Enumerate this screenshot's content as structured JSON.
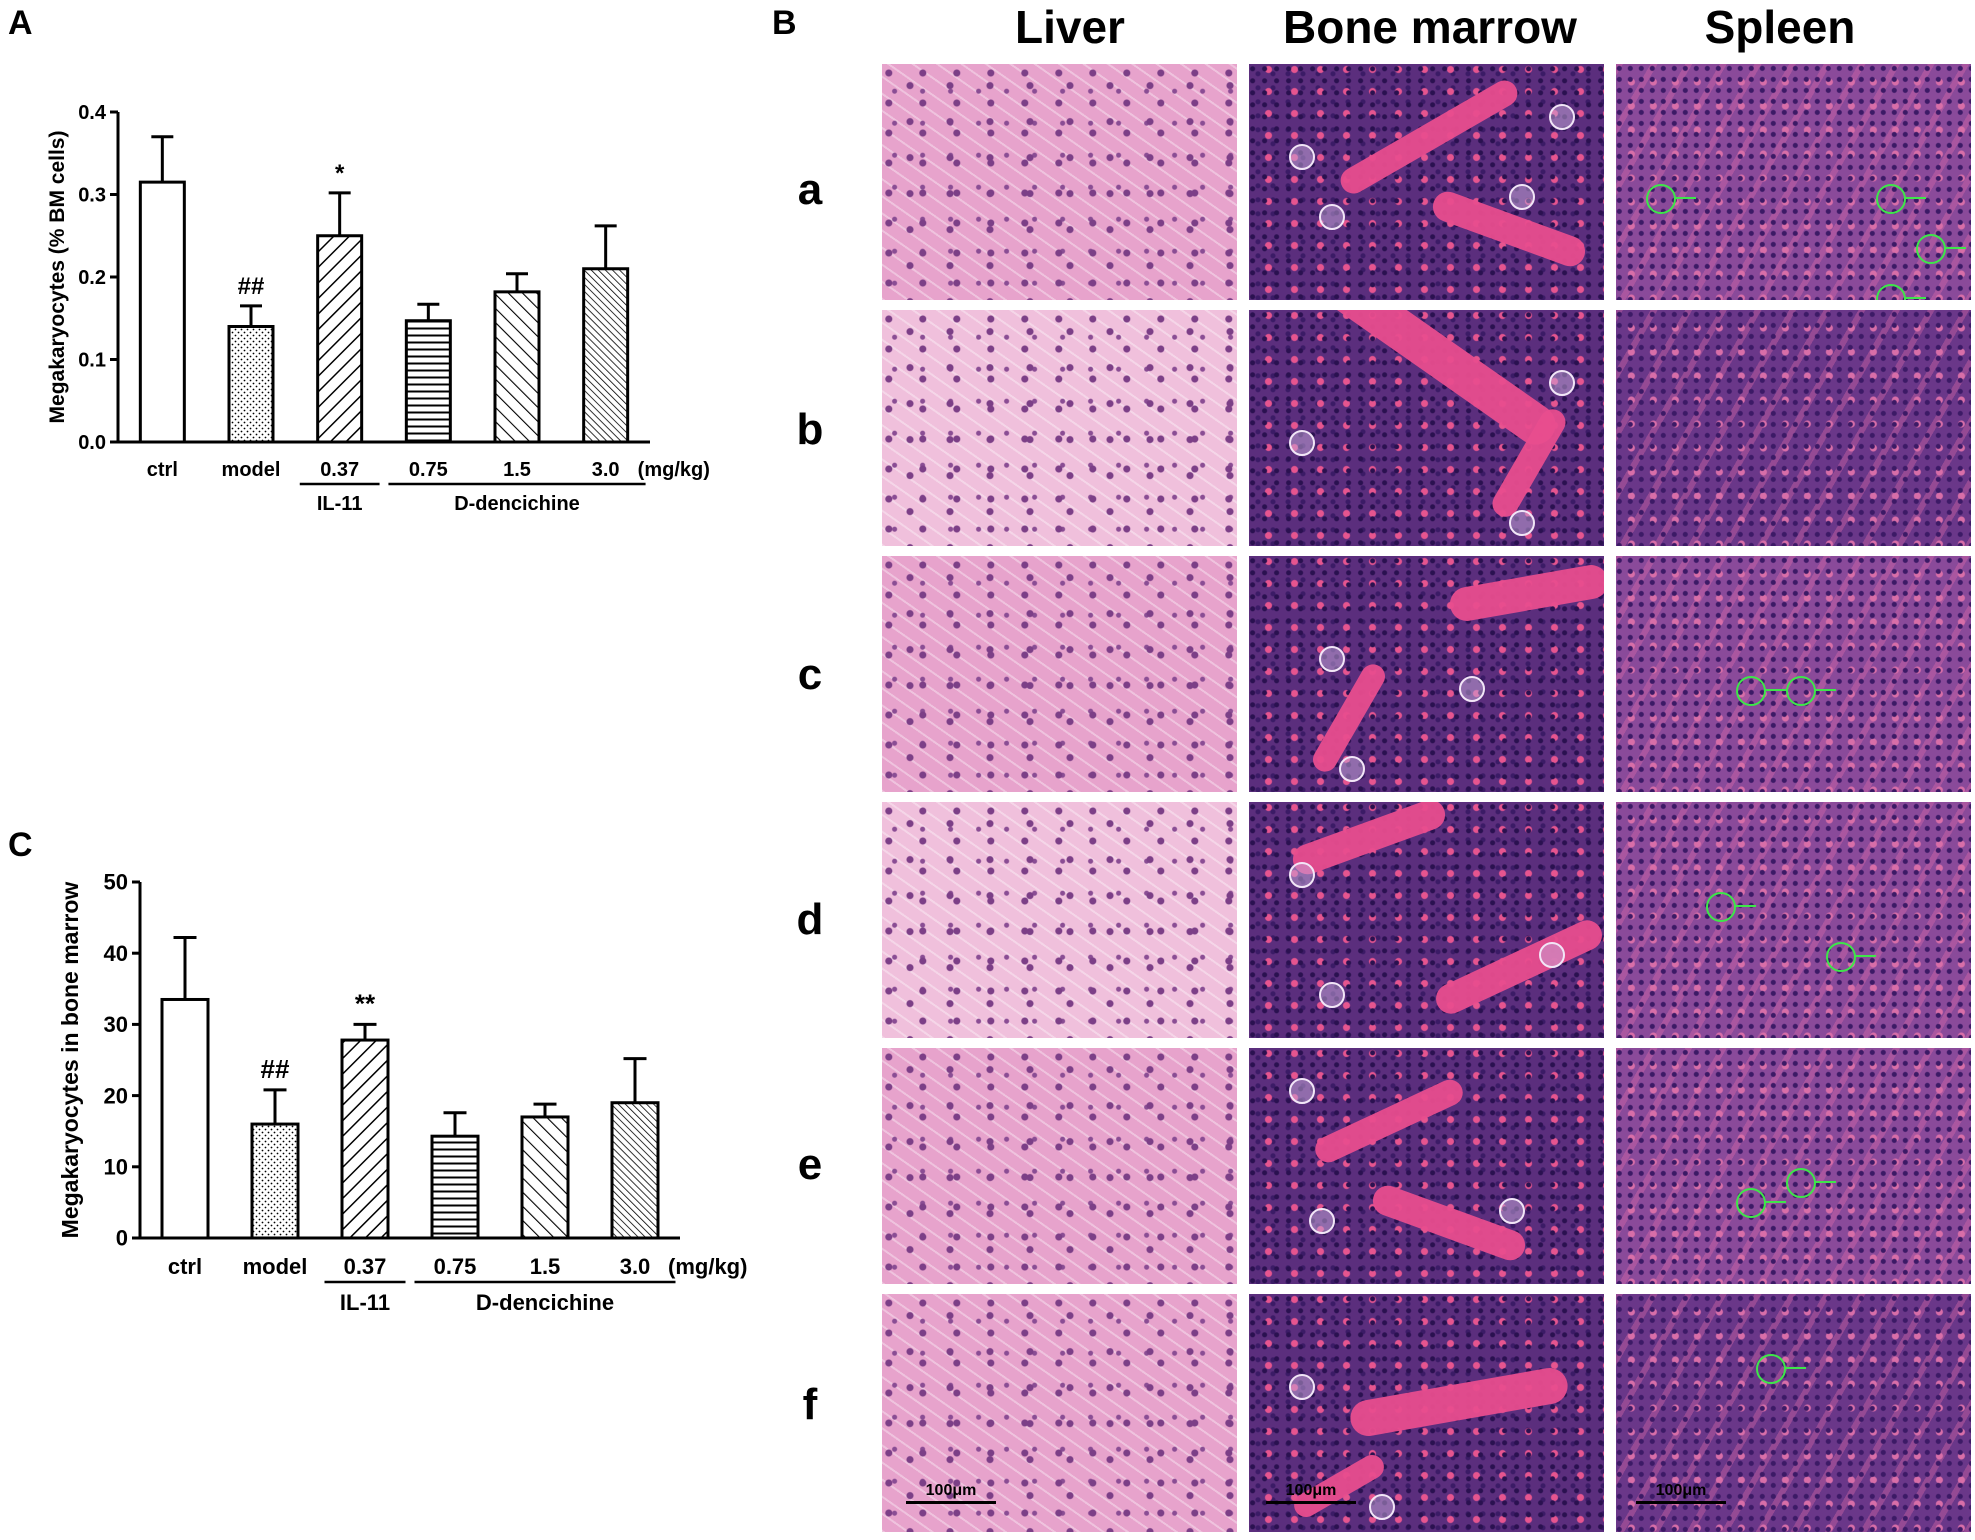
{
  "panelA": {
    "letter": "A",
    "ylabel": "Megakaryocytes (% BM cells)",
    "yticks": [
      "0.0",
      "0.1",
      "0.2",
      "0.3",
      "0.4"
    ],
    "categories": [
      "ctrl",
      "model",
      "0.37",
      "0.75",
      "1.5",
      "3.0"
    ],
    "unit": "(mg/kg)",
    "group1": "IL-11",
    "group2": "D-dencichine",
    "annotations": [
      "##",
      "*"
    ]
  },
  "panelC": {
    "letter": "C",
    "ylabel": "Megakaryocytes in bone marrow",
    "yticks": [
      "0",
      "10",
      "20",
      "30",
      "40",
      "50"
    ],
    "categories": [
      "ctrl",
      "model",
      "0.37",
      "0.75",
      "1.5",
      "3.0"
    ],
    "unit": "(mg/kg)",
    "group1": "IL-11",
    "group2": "D-dencichine",
    "annotations": [
      "##",
      "**"
    ]
  },
  "panelB": {
    "letter": "B",
    "columns": [
      "Liver",
      "Bone marrow",
      "Spleen"
    ],
    "rows": [
      "a",
      "b",
      "c",
      "d",
      "e",
      "f"
    ],
    "scalebar": "100μm"
  },
  "chart_data": [
    {
      "type": "bar",
      "categories": [
        "ctrl",
        "model",
        "0.37",
        "0.75",
        "1.5",
        "3.0"
      ],
      "values": [
        0.315,
        0.14,
        0.25,
        0.147,
        0.182,
        0.21
      ],
      "errors": [
        0.055,
        0.025,
        0.052,
        0.02,
        0.022,
        0.052
      ],
      "patterns": [
        "open",
        "dots",
        "diag-right",
        "horizontal",
        "diag-left",
        "diag-left-dense"
      ],
      "ylabel": "Megakaryocytes (% BM cells)",
      "ylim": [
        0,
        0.4
      ],
      "annotations": {
        "model": "##",
        "0.37": "*"
      }
    },
    {
      "type": "bar",
      "categories": [
        "ctrl",
        "model",
        "0.37",
        "0.75",
        "1.5",
        "3.0"
      ],
      "values": [
        33.5,
        16.0,
        27.8,
        14.3,
        17.0,
        19.0
      ],
      "errors": [
        8.7,
        4.8,
        2.2,
        3.3,
        1.8,
        6.2
      ],
      "patterns": [
        "open",
        "dots",
        "diag-right",
        "horizontal",
        "diag-left",
        "diag-left-dense"
      ],
      "ylabel": "Megakaryocytes in bone marrow",
      "ylim": [
        0,
        50
      ],
      "annotations": {
        "model": "##",
        "0.37": "**"
      }
    }
  ]
}
